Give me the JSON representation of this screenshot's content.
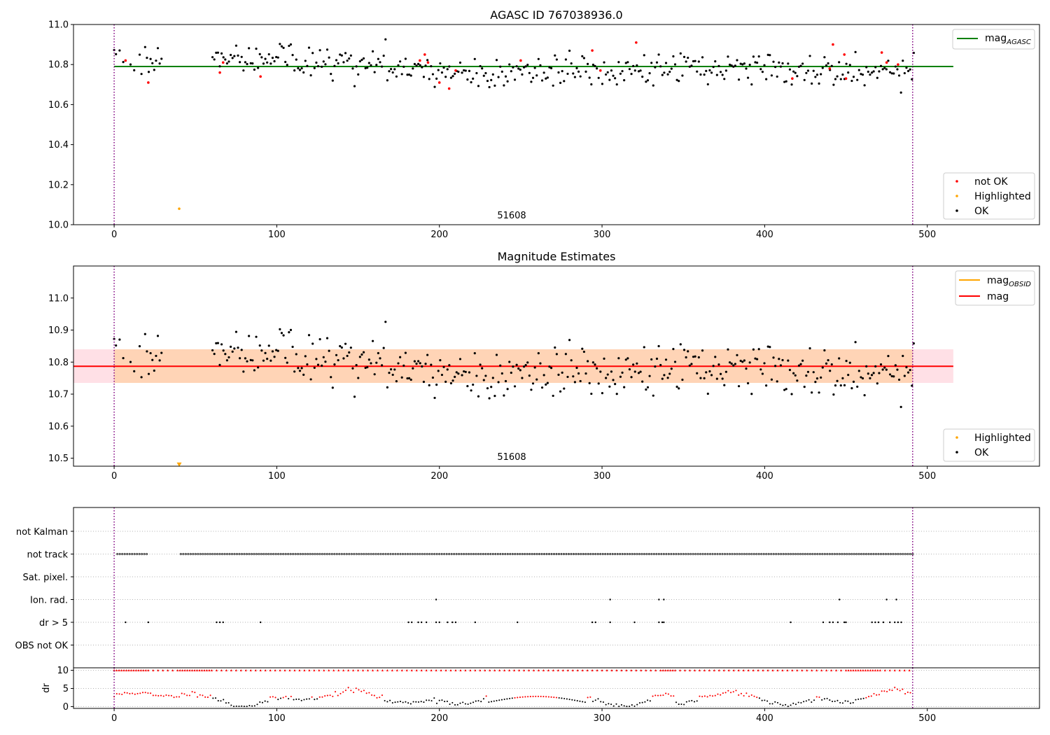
{
  "chart_data": [
    {
      "type": "scatter",
      "title": "AGASC ID 767038936.0",
      "annotation": "51608",
      "xlim": [
        -25,
        569
      ],
      "ylim": [
        10.0,
        11.0
      ],
      "xticks": [
        0,
        100,
        200,
        300,
        400,
        500
      ],
      "yticks": [
        10.0,
        10.2,
        10.4,
        10.6,
        10.8,
        11.0
      ],
      "vlines": [
        0,
        491
      ],
      "hline": {
        "label": "mag_AGASC",
        "value": 10.79,
        "x": [
          0,
          516
        ],
        "color": "#008000"
      },
      "legend_lines": [
        {
          "label": "mag",
          "sub": "AGASC",
          "color": "#008000"
        }
      ],
      "legend_points": [
        {
          "label": "not OK",
          "color": "#ff0000"
        },
        {
          "label": "Highlighted",
          "color": "#ffa500"
        },
        {
          "label": "OK",
          "color": "#000000"
        }
      ],
      "seed": 7,
      "x_range": [
        0,
        492
      ],
      "mean": 10.79,
      "spread": 0.05,
      "highlighted": [
        {
          "x": 40,
          "y": 10.08
        }
      ],
      "not_ok": [
        {
          "x": 7,
          "y": 10.82
        },
        {
          "x": 21,
          "y": 10.71
        },
        {
          "x": 65,
          "y": 10.76
        },
        {
          "x": 67,
          "y": 10.81
        },
        {
          "x": 90,
          "y": 10.74
        },
        {
          "x": 188,
          "y": 10.82
        },
        {
          "x": 191,
          "y": 10.85
        },
        {
          "x": 193,
          "y": 10.81
        },
        {
          "x": 200,
          "y": 10.71
        },
        {
          "x": 206,
          "y": 10.68
        },
        {
          "x": 210,
          "y": 10.77
        },
        {
          "x": 250,
          "y": 10.82
        },
        {
          "x": 294,
          "y": 10.87
        },
        {
          "x": 299,
          "y": 10.77
        },
        {
          "x": 321,
          "y": 10.91
        },
        {
          "x": 417,
          "y": 10.73
        },
        {
          "x": 440,
          "y": 10.78
        },
        {
          "x": 442,
          "y": 10.9
        },
        {
          "x": 449,
          "y": 10.85
        },
        {
          "x": 450,
          "y": 10.73
        },
        {
          "x": 472,
          "y": 10.86
        },
        {
          "x": 475,
          "y": 10.81
        },
        {
          "x": 482,
          "y": 10.8
        }
      ]
    },
    {
      "type": "scatter",
      "title": "Magnitude Estimates",
      "annotation": "51608",
      "xlim": [
        -25,
        569
      ],
      "ylim": [
        10.475,
        11.1
      ],
      "xticks": [
        0,
        100,
        200,
        300,
        400,
        500
      ],
      "yticks": [
        10.5,
        10.6,
        10.7,
        10.8,
        10.9,
        11.0
      ],
      "vlines": [
        0,
        491
      ],
      "mag": 10.787,
      "band_inner": [
        10.735,
        10.84
      ],
      "band_outer": [
        10.735,
        10.84
      ],
      "band_x": [
        -25,
        516
      ],
      "mag_obsid_x": [
        0,
        491
      ],
      "legend_lines": [
        {
          "label": "mag",
          "sub": "OBSID",
          "color": "#ffa500"
        },
        {
          "label": "mag",
          "sub": "",
          "color": "#ff0000"
        }
      ],
      "legend_points": [
        {
          "label": "Highlighted",
          "color": "#ffa500"
        },
        {
          "label": "OK",
          "color": "#000000"
        }
      ],
      "seed": 7,
      "x_range": [
        0,
        492
      ],
      "mean": 10.79,
      "spread": 0.05,
      "highlighted": [
        {
          "x": 40,
          "y": 10.48
        }
      ]
    },
    {
      "type": "scatter",
      "title": "",
      "xlim": [
        -25,
        569
      ],
      "categories": [
        "not Kalman",
        "not track",
        "Sat. pixel.",
        "Ion. rad.",
        "dr > 5",
        "OBS not OK"
      ],
      "xticks": [
        0,
        100,
        200,
        300,
        400,
        500
      ],
      "vlines": [
        0,
        491
      ],
      "flags": {
        "not track": {
          "segments": [
            [
              2,
              20
            ],
            [
              41,
              491
            ]
          ],
          "step": 1.5
        },
        "Ion. rad.": {
          "points": [
            198,
            305,
            335,
            338,
            446,
            475,
            481
          ]
        },
        "dr > 5": {
          "points": [
            7,
            21,
            63,
            65,
            67,
            90,
            181,
            183,
            187,
            189,
            192,
            198,
            200,
            205,
            208,
            210,
            222,
            248,
            294,
            296,
            305,
            320,
            335,
            337,
            338,
            416,
            436,
            440,
            442,
            445,
            449,
            450,
            466,
            468,
            470,
            473,
            477,
            480,
            482,
            484
          ]
        }
      }
    },
    {
      "type": "scatter",
      "title": "",
      "ylabel": "dr",
      "xlim": [
        -25,
        569
      ],
      "ylim": [
        -0.5,
        10.7
      ],
      "xticks": [
        0,
        100,
        200,
        300,
        400,
        500
      ],
      "xtick_labels": [
        "0",
        "100",
        "200",
        "300",
        "400",
        "500"
      ],
      "yticks": [
        0,
        5,
        10
      ],
      "vlines": [
        0,
        491
      ],
      "cap": 10,
      "cap_x_range": [
        0,
        491
      ],
      "seed": 11
    }
  ]
}
